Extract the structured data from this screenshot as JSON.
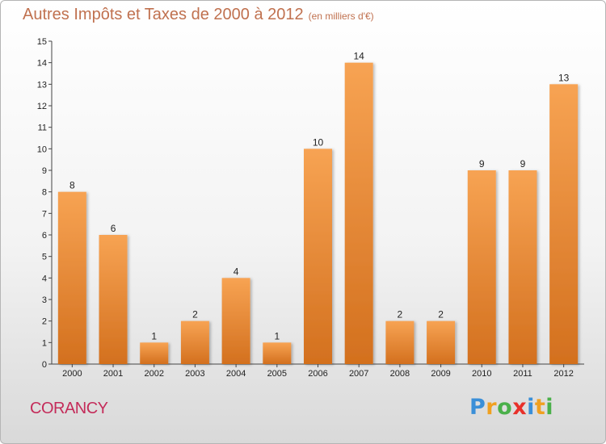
{
  "header": {
    "title": "Autres Impôts et Taxes de 2000 à 2012",
    "subtitle": "(en milliers d'€)"
  },
  "footer": {
    "commune": "CORANCY",
    "logo": "Proxiti"
  },
  "colors": {
    "bar_top": "#f7a353",
    "bar_bottom": "#d3701e",
    "title": "#c0714f",
    "commune": "#c42c5a"
  },
  "chart_data": {
    "type": "bar",
    "title": "Autres Impôts et Taxes de 2000 à 2012",
    "subtitle": "(en milliers d'€)",
    "categories": [
      "2000",
      "2001",
      "2002",
      "2003",
      "2004",
      "2005",
      "2006",
      "2007",
      "2008",
      "2009",
      "2010",
      "2011",
      "2012"
    ],
    "values": [
      8,
      6,
      1,
      2,
      4,
      1,
      10,
      14,
      2,
      2,
      9,
      9,
      13
    ],
    "yticks": [
      0,
      1,
      2,
      3,
      4,
      5,
      6,
      7,
      8,
      9,
      10,
      11,
      12,
      13,
      14,
      15
    ],
    "ylim": [
      0,
      15
    ],
    "grid": false,
    "xlabel": "",
    "ylabel": ""
  }
}
